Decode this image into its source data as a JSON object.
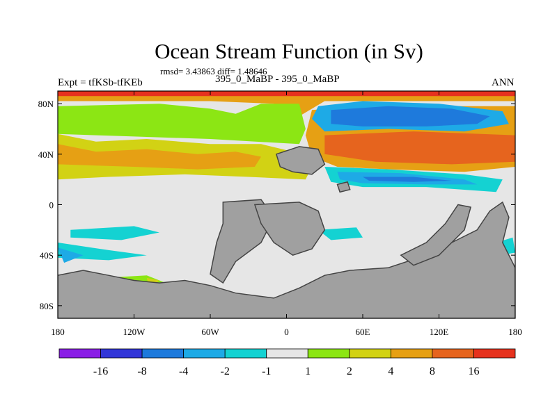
{
  "chart_data": {
    "type": "heatmap",
    "title": "Ocean Stream Function (in Sv)",
    "subtitle": "rmsd= 3.43863 diff= 1.48646",
    "left_label": "Expt = tfKSb-tfKEb",
    "center_label": "395_0_MaBP - 395_0_MaBP",
    "right_label": "ANN",
    "xlim": [
      -180,
      180
    ],
    "ylim": [
      -90,
      90
    ],
    "x_ticks": [
      {
        "value": -180,
        "label": "180"
      },
      {
        "value": -120,
        "label": "120W"
      },
      {
        "value": -60,
        "label": "60W"
      },
      {
        "value": 0,
        "label": "0"
      },
      {
        "value": 60,
        "label": "60E"
      },
      {
        "value": 120,
        "label": "120E"
      },
      {
        "value": 180,
        "label": "180"
      }
    ],
    "y_ticks": [
      {
        "value": 80,
        "label": "80N"
      },
      {
        "value": 40,
        "label": "40N"
      },
      {
        "value": 0,
        "label": "0"
      },
      {
        "value": -40,
        "label": "40S"
      },
      {
        "value": -80,
        "label": "80S"
      }
    ],
    "colorbar": {
      "levels": [
        "-16",
        "-8",
        "-4",
        "-2",
        "-1",
        "1",
        "2",
        "4",
        "8",
        "16"
      ],
      "colors": [
        "#8a1ee6",
        "#3236d8",
        "#1e7adc",
        "#1eaae6",
        "#14d2d2",
        "#e6e6e6",
        "#8ce614",
        "#d2d214",
        "#e6a014",
        "#e6641e",
        "#e6321e"
      ]
    },
    "regions": [
      {
        "name": "far-north-orange",
        "color": "#e6a014",
        "points": [
          [
            -180,
            90
          ],
          [
            180,
            90
          ],
          [
            180,
            82
          ],
          [
            30,
            82
          ],
          [
            10,
            70
          ],
          [
            -10,
            80
          ],
          [
            -60,
            82
          ],
          [
            -180,
            82
          ]
        ]
      },
      {
        "name": "arctic-red",
        "color": "#e6321e",
        "points": [
          [
            -180,
            90
          ],
          [
            180,
            90
          ],
          [
            180,
            86
          ],
          [
            -180,
            86
          ]
        ]
      },
      {
        "name": "nw-light-green",
        "color": "#8ce614",
        "points": [
          [
            -180,
            78
          ],
          [
            -100,
            80
          ],
          [
            -60,
            76
          ],
          [
            -40,
            72
          ],
          [
            -20,
            80
          ],
          [
            10,
            80
          ],
          [
            15,
            60
          ],
          [
            10,
            48
          ],
          [
            -60,
            52
          ],
          [
            -120,
            54
          ],
          [
            -180,
            56
          ]
        ]
      },
      {
        "name": "north-yellow",
        "color": "#d2d214",
        "points": [
          [
            -180,
            56
          ],
          [
            -150,
            50
          ],
          [
            -110,
            52
          ],
          [
            -60,
            48
          ],
          [
            -20,
            48
          ],
          [
            5,
            42
          ],
          [
            20,
            30
          ],
          [
            15,
            20
          ],
          [
            -30,
            22
          ],
          [
            -80,
            24
          ],
          [
            -140,
            22
          ],
          [
            -180,
            20
          ]
        ]
      },
      {
        "name": "north-pacific-orange",
        "color": "#e6a014",
        "points": [
          [
            -180,
            48
          ],
          [
            -150,
            42
          ],
          [
            -110,
            44
          ],
          [
            -70,
            40
          ],
          [
            -40,
            42
          ],
          [
            -20,
            38
          ],
          [
            -25,
            30
          ],
          [
            -70,
            28
          ],
          [
            -120,
            30
          ],
          [
            -180,
            32
          ]
        ]
      },
      {
        "name": "atlantic-orange-band",
        "color": "#e6a014",
        "points": [
          [
            20,
            75
          ],
          [
            60,
            78
          ],
          [
            180,
            78
          ],
          [
            180,
            30
          ],
          [
            140,
            26
          ],
          [
            80,
            28
          ],
          [
            40,
            30
          ],
          [
            20,
            38
          ],
          [
            15,
            55
          ]
        ]
      },
      {
        "name": "atlantic-deep-orange",
        "color": "#e6641e",
        "points": [
          [
            30,
            55
          ],
          [
            100,
            58
          ],
          [
            180,
            55
          ],
          [
            180,
            34
          ],
          [
            130,
            32
          ],
          [
            70,
            34
          ],
          [
            30,
            40
          ]
        ]
      },
      {
        "name": "north-blue-cyan",
        "color": "#1eaae6",
        "points": [
          [
            25,
            78
          ],
          [
            60,
            82
          ],
          [
            120,
            80
          ],
          [
            170,
            74
          ],
          [
            175,
            64
          ],
          [
            140,
            58
          ],
          [
            80,
            60
          ],
          [
            30,
            58
          ],
          [
            20,
            68
          ]
        ]
      },
      {
        "name": "north-blue-core",
        "color": "#1e7adc",
        "points": [
          [
            35,
            75
          ],
          [
            80,
            78
          ],
          [
            130,
            76
          ],
          [
            160,
            70
          ],
          [
            150,
            64
          ],
          [
            110,
            62
          ],
          [
            60,
            62
          ],
          [
            35,
            64
          ]
        ]
      },
      {
        "name": "tropical-cyan",
        "color": "#14d2d2",
        "points": [
          [
            30,
            30
          ],
          [
            80,
            28
          ],
          [
            140,
            24
          ],
          [
            170,
            20
          ],
          [
            165,
            10
          ],
          [
            110,
            14
          ],
          [
            60,
            14
          ],
          [
            35,
            18
          ]
        ]
      },
      {
        "name": "tropical-blue",
        "color": "#1eaae6",
        "points": [
          [
            40,
            26
          ],
          [
            90,
            25
          ],
          [
            140,
            20
          ],
          [
            150,
            16
          ],
          [
            110,
            16
          ],
          [
            60,
            17
          ],
          [
            42,
            20
          ]
        ]
      },
      {
        "name": "tropical-blue-core",
        "color": "#1e7adc",
        "points": [
          [
            60,
            22
          ],
          [
            100,
            22
          ],
          [
            130,
            19
          ],
          [
            100,
            18
          ],
          [
            65,
            19
          ]
        ]
      },
      {
        "name": "west-pacific-cyan",
        "color": "#14d2d2",
        "points": [
          [
            -170,
            -20
          ],
          [
            -120,
            -17
          ],
          [
            -100,
            -22
          ],
          [
            -130,
            -28
          ],
          [
            -170,
            -26
          ]
        ]
      },
      {
        "name": "south-pacific-cyan",
        "color": "#14d2d2",
        "points": [
          [
            -180,
            -30
          ],
          [
            -140,
            -36
          ],
          [
            -110,
            -40
          ],
          [
            -140,
            -44
          ],
          [
            -180,
            -42
          ]
        ]
      },
      {
        "name": "south-pacific-blue",
        "color": "#1eaae6",
        "points": [
          [
            -180,
            -34
          ],
          [
            -160,
            -40
          ],
          [
            -175,
            -46
          ]
        ]
      },
      {
        "name": "south-green-patch",
        "color": "#8ce614",
        "points": [
          [
            -145,
            -58
          ],
          [
            -110,
            -56
          ],
          [
            -95,
            -62
          ],
          [
            -120,
            -66
          ],
          [
            -140,
            -64
          ]
        ]
      },
      {
        "name": "south-yellow-patch",
        "color": "#d2d214",
        "points": [
          [
            -110,
            -58
          ],
          [
            -100,
            -60
          ],
          [
            -108,
            -66
          ]
        ]
      },
      {
        "name": "indian-cyan",
        "color": "#14d2d2",
        "points": [
          [
            25,
            -20
          ],
          [
            55,
            -18
          ],
          [
            60,
            -26
          ],
          [
            35,
            -28
          ]
        ]
      },
      {
        "name": "australia-east-cyan",
        "color": "#14d2d2",
        "points": [
          [
            165,
            -30
          ],
          [
            178,
            -26
          ],
          [
            180,
            -38
          ],
          [
            168,
            -40
          ]
        ]
      },
      {
        "name": "south-continent",
        "color": "#a0a0a0",
        "points": [
          [
            -180,
            -56
          ],
          [
            -160,
            -52
          ],
          [
            -140,
            -56
          ],
          [
            -120,
            -60
          ],
          [
            -100,
            -62
          ],
          [
            -80,
            -60
          ],
          [
            -60,
            -64
          ],
          [
            -40,
            -70
          ],
          [
            -10,
            -74
          ],
          [
            10,
            -66
          ],
          [
            30,
            -56
          ],
          [
            50,
            -52
          ],
          [
            80,
            -50
          ],
          [
            110,
            -40
          ],
          [
            130,
            -30
          ],
          [
            150,
            -20
          ],
          [
            160,
            -5
          ],
          [
            170,
            2
          ],
          [
            175,
            -10
          ],
          [
            170,
            -30
          ],
          [
            180,
            -50
          ],
          [
            180,
            -90
          ],
          [
            -180,
            -90
          ]
        ]
      },
      {
        "name": "south-america-like-block",
        "color": "#a0a0a0",
        "points": [
          [
            -50,
            2
          ],
          [
            -20,
            4
          ],
          [
            -10,
            -10
          ],
          [
            -20,
            -30
          ],
          [
            -40,
            -45
          ],
          [
            -50,
            -62
          ],
          [
            -60,
            -55
          ],
          [
            -55,
            -30
          ],
          [
            -50,
            -15
          ]
        ]
      },
      {
        "name": "africa-like-block",
        "color": "#a0a0a0",
        "points": [
          [
            -25,
            0
          ],
          [
            10,
            2
          ],
          [
            25,
            -5
          ],
          [
            30,
            -20
          ],
          [
            20,
            -35
          ],
          [
            5,
            -40
          ],
          [
            -10,
            -30
          ],
          [
            -20,
            -15
          ]
        ]
      },
      {
        "name": "australia-like-block",
        "color": "#a0a0a0",
        "points": [
          [
            90,
            -40
          ],
          [
            110,
            -30
          ],
          [
            125,
            -15
          ],
          [
            135,
            0
          ],
          [
            145,
            -2
          ],
          [
            140,
            -20
          ],
          [
            120,
            -40
          ],
          [
            100,
            -48
          ]
        ]
      },
      {
        "name": "north-small-continent",
        "color": "#a0a0a0",
        "points": [
          [
            -8,
            40
          ],
          [
            10,
            46
          ],
          [
            25,
            44
          ],
          [
            30,
            32
          ],
          [
            20,
            24
          ],
          [
            5,
            26
          ],
          [
            -5,
            30
          ]
        ]
      },
      {
        "name": "east-island",
        "color": "#a0a0a0",
        "points": [
          [
            40,
            16
          ],
          [
            48,
            18
          ],
          [
            50,
            12
          ],
          [
            42,
            10
          ]
        ]
      }
    ]
  }
}
